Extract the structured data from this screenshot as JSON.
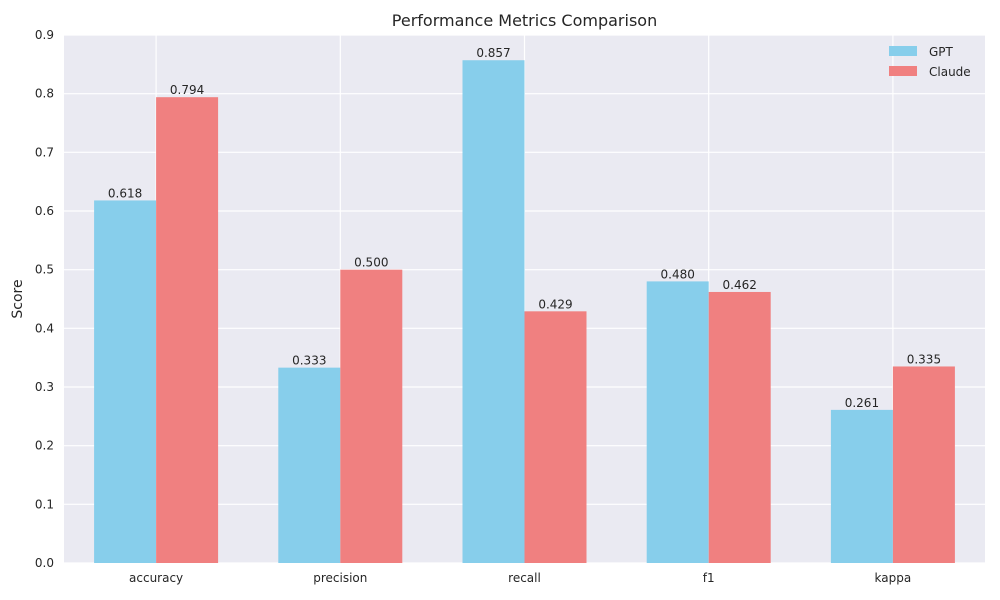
{
  "chart_data": {
    "type": "bar",
    "title": "Performance Metrics Comparison",
    "xlabel": "",
    "ylabel": "Score",
    "categories": [
      "accuracy",
      "precision",
      "recall",
      "f1",
      "kappa"
    ],
    "series": [
      {
        "name": "GPT",
        "color": "#87ceeb",
        "values": [
          0.618,
          0.333,
          0.857,
          0.48,
          0.261
        ],
        "labels": [
          "0.618",
          "0.333",
          "0.857",
          "0.480",
          "0.261"
        ]
      },
      {
        "name": "Claude",
        "color": "#f08080",
        "values": [
          0.794,
          0.5,
          0.429,
          0.462,
          0.335
        ],
        "labels": [
          "0.794",
          "0.500",
          "0.429",
          "0.462",
          "0.335"
        ]
      }
    ],
    "ylim": [
      0,
      0.9
    ],
    "yticks": [
      0.0,
      0.1,
      0.2,
      0.3,
      0.4,
      0.5,
      0.6,
      0.7,
      0.8,
      0.9
    ],
    "ytick_labels": [
      "0.0",
      "0.1",
      "0.2",
      "0.3",
      "0.4",
      "0.5",
      "0.6",
      "0.7",
      "0.8",
      "0.9"
    ],
    "grid": true,
    "background_color": "#eaeaf2",
    "legend_position": "top-right"
  }
}
